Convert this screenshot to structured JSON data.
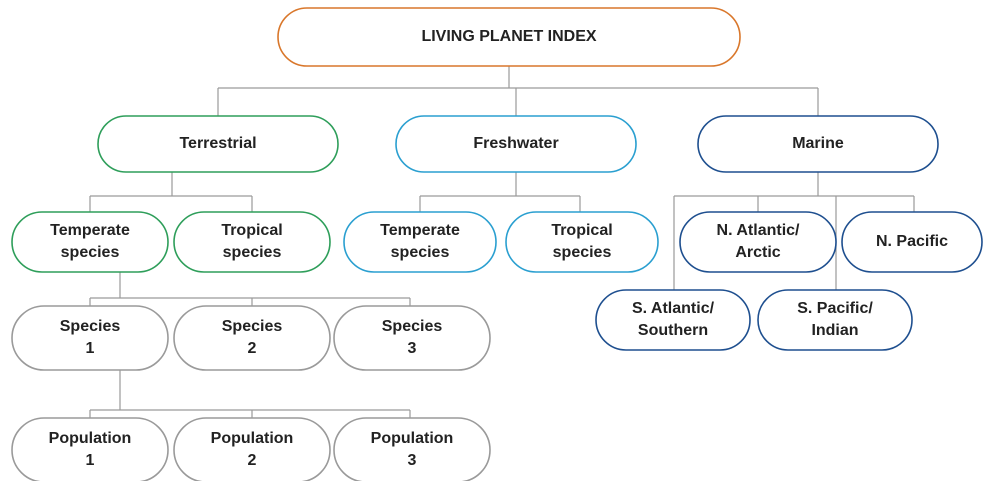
{
  "nodes": [
    {
      "lines": [
        "LIVING PLANET INDEX"
      ]
    },
    {
      "lines": [
        "Terrestrial"
      ]
    },
    {
      "lines": [
        "Freshwater"
      ]
    },
    {
      "lines": [
        "Marine"
      ]
    },
    {
      "lines": [
        "Temperate",
        "species"
      ]
    },
    {
      "lines": [
        "Tropical",
        "species"
      ]
    },
    {
      "lines": [
        "Temperate",
        "species"
      ]
    },
    {
      "lines": [
        "Tropical",
        "species"
      ]
    },
    {
      "lines": [
        "N. Atlantic/",
        "Arctic"
      ]
    },
    {
      "lines": [
        "N. Pacific"
      ]
    },
    {
      "lines": [
        "S. Atlantic/",
        "Southern"
      ]
    },
    {
      "lines": [
        "S. Pacific/",
        "Indian"
      ]
    },
    {
      "lines": [
        "Species",
        "1"
      ]
    },
    {
      "lines": [
        "Species",
        "2"
      ]
    },
    {
      "lines": [
        "Species",
        "3"
      ]
    },
    {
      "lines": [
        "Population",
        "1"
      ]
    },
    {
      "lines": [
        "Population",
        "2"
      ]
    },
    {
      "lines": [
        "Population",
        "3"
      ]
    }
  ]
}
